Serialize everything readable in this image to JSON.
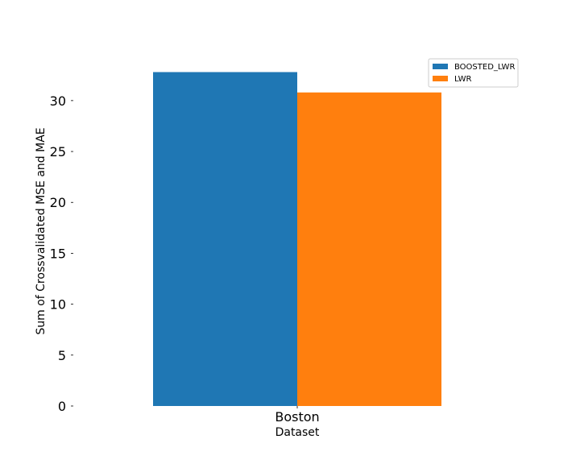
{
  "chart_data": {
    "type": "bar",
    "categories": [
      "Boston"
    ],
    "series": [
      {
        "name": "BOOSTED_LWR",
        "values": [
          32.8
        ],
        "color": "#1f77b4"
      },
      {
        "name": "LWR",
        "values": [
          30.8
        ],
        "color": "#ff7f0e"
      }
    ],
    "xlabel": "Dataset",
    "ylabel": "Sum of Crossvalidated MSE and MAE",
    "ylim": [
      0,
      34.5
    ],
    "yticks": [
      0,
      5,
      10,
      15,
      20,
      25,
      30
    ],
    "ytick_labels": [
      "0",
      "5",
      "10",
      "15",
      "20",
      "25",
      "30"
    ],
    "grid": false,
    "legend_position": "top-right"
  }
}
